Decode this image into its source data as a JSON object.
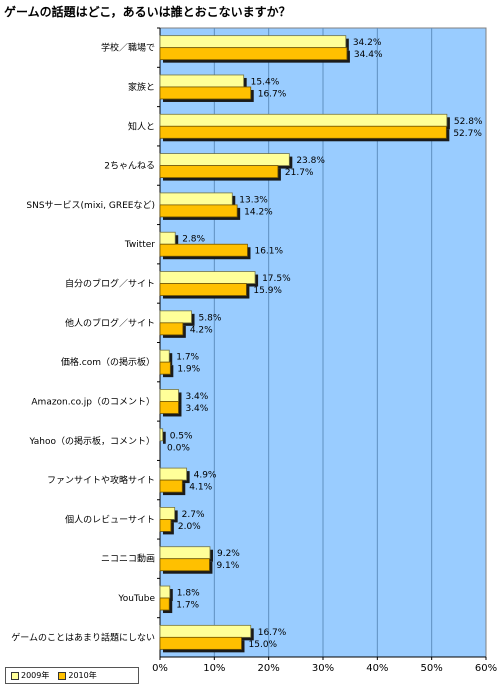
{
  "chart_data": {
    "type": "bar",
    "orientation": "horizontal",
    "title": "ゲームの話題はどこ，あるいは誰とおこないますか？",
    "categories": [
      "学校／職場で",
      "家族と",
      "知人と",
      "2ちゃんねる",
      "SNSサービス(mixi, GREEなど)",
      "Twitter",
      "自分のブログ／サイト",
      "他人のブログ／サイト",
      "価格.com（の掲示板）",
      "Amazon.co.jp（のコメント）",
      "Yahoo（の掲示板，コメント）",
      "ファンサイトや攻略サイト",
      "個人のレビューサイト",
      "ニコニコ動画",
      "YouTube",
      "ゲームのことはあまり話題にしない"
    ],
    "series": [
      {
        "name": "2009年",
        "color": "#ffff99",
        "values": [
          34.2,
          15.4,
          52.8,
          23.8,
          13.3,
          2.8,
          17.5,
          5.8,
          1.7,
          3.4,
          0.5,
          4.9,
          2.7,
          9.2,
          1.8,
          16.7
        ],
        "labels": [
          "34.2%",
          "15.4%",
          "52.8%",
          "23.8%",
          "13.3%",
          "2.8%",
          "17.5%",
          "5.8%",
          "1.7%",
          "3.4%",
          "0.5%",
          "4.9%",
          "2.7%",
          "9.2%",
          "1.8%",
          "16.7%"
        ]
      },
      {
        "name": "2010年",
        "color": "#ffc000",
        "values": [
          34.4,
          16.7,
          52.7,
          21.7,
          14.2,
          16.1,
          15.9,
          4.2,
          1.9,
          3.4,
          0.0,
          4.1,
          2.0,
          9.1,
          1.7,
          15.0
        ],
        "labels": [
          "34.4%",
          "16.7%",
          "52.7%",
          "21.7%",
          "14.2%",
          "16.1%",
          "15.9%",
          "4.2%",
          "1.9%",
          "3.4%",
          "0.0%",
          "4.1%",
          "2.0%",
          "9.1%",
          "1.7%",
          "15.0%"
        ]
      }
    ],
    "xlim": [
      0,
      60
    ],
    "xticks": [
      "0%",
      "10%",
      "20%",
      "30%",
      "40%",
      "50%",
      "60%"
    ],
    "grid": true,
    "legend": "bottom-left",
    "plot_bg_color": "#99ccff"
  }
}
